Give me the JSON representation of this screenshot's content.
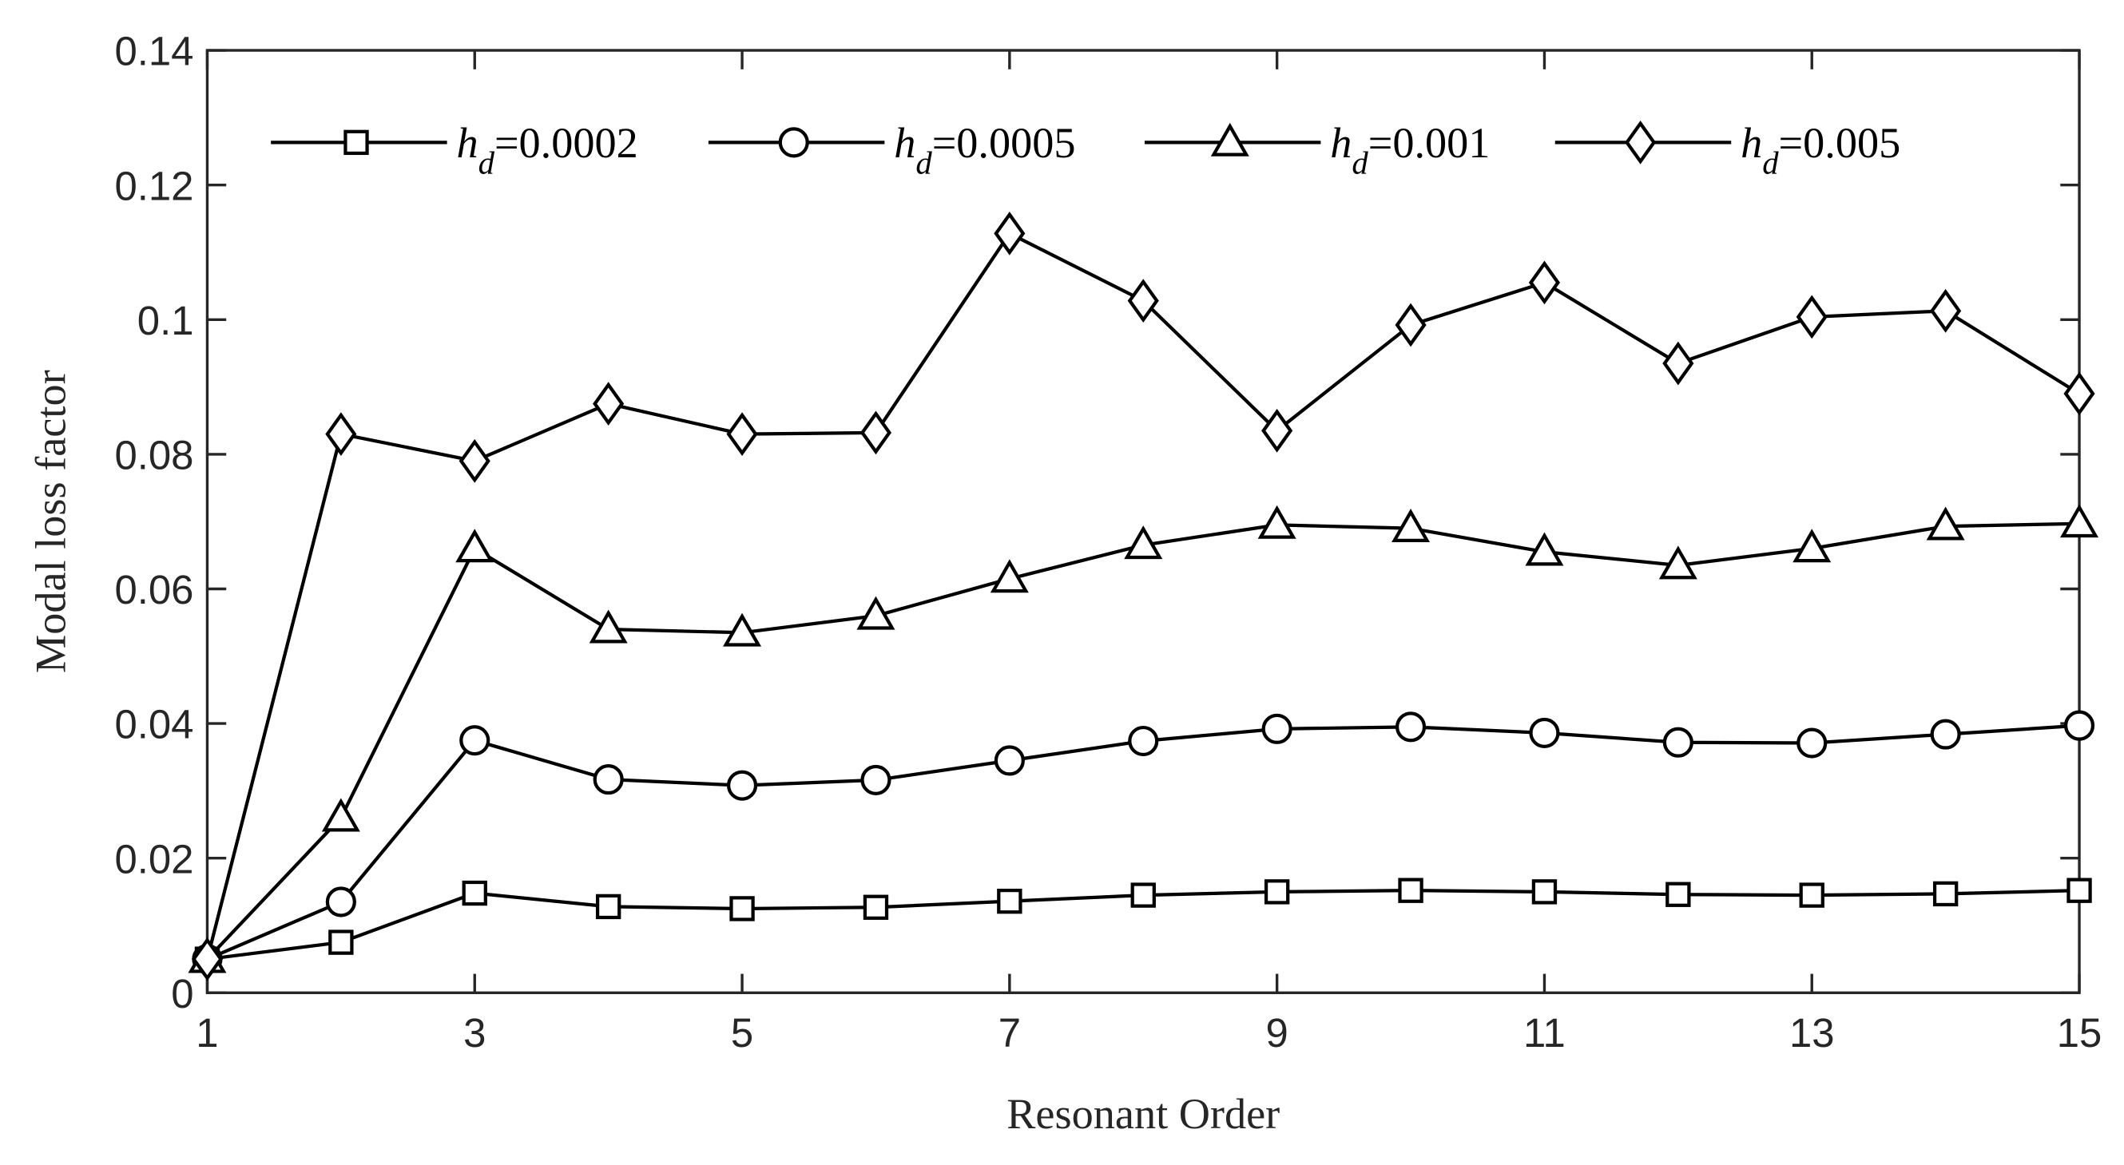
{
  "chart_data": {
    "type": "line",
    "xlabel": "Resonant Order",
    "ylabel": "Modal loss factor",
    "x": [
      1,
      2,
      3,
      4,
      5,
      6,
      7,
      8,
      9,
      10,
      11,
      12,
      13,
      14,
      15
    ],
    "xlim": [
      1,
      15
    ],
    "xticks": [
      1,
      3,
      5,
      7,
      9,
      11,
      13,
      15
    ],
    "ylim": [
      0,
      0.14
    ],
    "yticks": [
      0,
      0.02,
      0.04,
      0.06,
      0.08,
      0.1,
      0.12,
      0.14
    ],
    "grid": false,
    "legend": "top",
    "series": [
      {
        "name": "hd=0.0002",
        "color": "#000000",
        "marker": "square",
        "values": [
          0.005,
          0.0075,
          0.0148,
          0.0128,
          0.0125,
          0.0127,
          0.0136,
          0.0145,
          0.015,
          0.0152,
          0.015,
          0.0146,
          0.0145,
          0.0147,
          0.0152
        ]
      },
      {
        "name": "hd=0.0005",
        "color": "#000000",
        "marker": "circle",
        "values": [
          0.005,
          0.0135,
          0.0375,
          0.0317,
          0.0308,
          0.0316,
          0.0345,
          0.0374,
          0.0392,
          0.0395,
          0.0386,
          0.0372,
          0.0371,
          0.0384,
          0.0397
        ]
      },
      {
        "name": "hd=0.001",
        "color": "#000000",
        "marker": "triangle",
        "values": [
          0.005,
          0.026,
          0.066,
          0.054,
          0.0535,
          0.056,
          0.0615,
          0.0665,
          0.0695,
          0.069,
          0.0655,
          0.0635,
          0.066,
          0.0693,
          0.0697
        ]
      },
      {
        "name": "hd=0.005",
        "color": "#000000",
        "marker": "diamond",
        "values": [
          0.005,
          0.083,
          0.079,
          0.0875,
          0.083,
          0.0832,
          0.1128,
          0.1028,
          0.0835,
          0.0992,
          0.1055,
          0.0935,
          0.1004,
          0.1013,
          0.089
        ]
      }
    ]
  }
}
